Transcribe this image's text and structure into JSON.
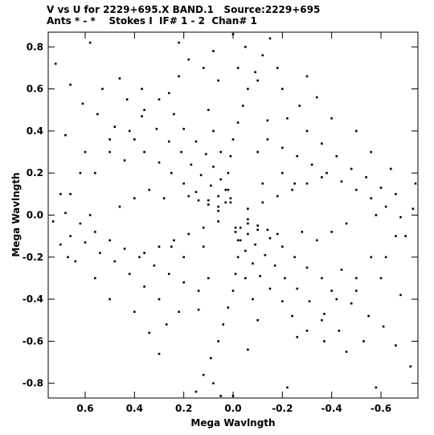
{
  "header": {
    "title": "V vs U for 2229+695.X BAND.1   Source:2229+695",
    "subtitle": "Ants * - *    Stokes I  IF# 1 - 2  Chan# 1"
  },
  "chart_data": {
    "type": "scatter",
    "xlabel": "Mega Wavlngth",
    "ylabel": "Mega Wavlngth",
    "xlim": [
      0.75,
      -0.75
    ],
    "ylim": [
      -0.87,
      0.87
    ],
    "x_ticks": [
      0.6,
      0.4,
      0.2,
      0.0,
      -0.2,
      -0.4,
      -0.6
    ],
    "x_tick_labels": [
      "0.6",
      "0.4",
      "0.2",
      "0.0",
      "-0.2",
      "-0.4",
      "-0.6"
    ],
    "y_ticks": [
      0.8,
      0.6,
      0.4,
      0.2,
      0.0,
      -0.2,
      -0.4,
      -0.6,
      -0.8
    ],
    "y_tick_labels": [
      "0.8",
      "0.6",
      "0.4",
      "0.2",
      "0.0",
      "-0.2",
      "-0.4",
      "-0.6",
      "-0.8"
    ],
    "grid": false,
    "marker_color": "#000000",
    "series": [
      {
        "points": [
          [
            0.72,
            0.72
          ],
          [
            0.58,
            0.82
          ],
          [
            0.66,
            0.62
          ],
          [
            0.61,
            0.53
          ],
          [
            0.53,
            0.6
          ],
          [
            0.46,
            0.65
          ],
          [
            0.55,
            0.48
          ],
          [
            0.43,
            0.55
          ],
          [
            0.37,
            0.6
          ],
          [
            0.48,
            0.42
          ],
          [
            0.37,
            0.47
          ],
          [
            0.3,
            0.55
          ],
          [
            0.4,
            0.36
          ],
          [
            0.31,
            0.41
          ],
          [
            0.24,
            0.48
          ],
          [
            0.36,
            0.3
          ],
          [
            0.26,
            0.35
          ],
          [
            0.2,
            0.41
          ],
          [
            0.3,
            0.25
          ],
          [
            0.21,
            0.3
          ],
          [
            0.15,
            0.35
          ],
          [
            0.25,
            0.2
          ],
          [
            0.17,
            0.24
          ],
          [
            0.11,
            0.29
          ],
          [
            0.2,
            0.15
          ],
          [
            0.13,
            0.19
          ],
          [
            0.08,
            0.23
          ],
          [
            0.15,
            0.11
          ],
          [
            0.09,
            0.14
          ],
          [
            0.05,
            0.17
          ],
          [
            0.1,
            0.07
          ],
          [
            0.06,
            0.09
          ],
          [
            0.03,
            0.12
          ],
          [
            0.06,
            0.04
          ],
          [
            0.03,
            0.06
          ],
          [
            0.01,
            0.08
          ],
          [
            -0.72,
            -0.72
          ],
          [
            -0.58,
            -0.82
          ],
          [
            -0.66,
            -0.62
          ],
          [
            -0.61,
            -0.53
          ],
          [
            -0.53,
            -0.6
          ],
          [
            -0.46,
            -0.65
          ],
          [
            -0.55,
            -0.48
          ],
          [
            -0.43,
            -0.55
          ],
          [
            -0.37,
            -0.6
          ],
          [
            -0.48,
            -0.42
          ],
          [
            -0.37,
            -0.47
          ],
          [
            -0.3,
            -0.55
          ],
          [
            -0.4,
            -0.36
          ],
          [
            -0.31,
            -0.41
          ],
          [
            -0.24,
            -0.48
          ],
          [
            -0.36,
            -0.3
          ],
          [
            -0.26,
            -0.35
          ],
          [
            -0.2,
            -0.41
          ],
          [
            -0.3,
            -0.25
          ],
          [
            -0.21,
            -0.3
          ],
          [
            -0.15,
            -0.35
          ],
          [
            -0.25,
            -0.2
          ],
          [
            -0.17,
            -0.24
          ],
          [
            -0.11,
            -0.29
          ],
          [
            -0.2,
            -0.15
          ],
          [
            -0.13,
            -0.19
          ],
          [
            -0.08,
            -0.23
          ],
          [
            -0.15,
            -0.11
          ],
          [
            -0.09,
            -0.14
          ],
          [
            -0.05,
            -0.17
          ],
          [
            -0.1,
            -0.07
          ],
          [
            -0.06,
            -0.09
          ],
          [
            -0.03,
            -0.12
          ],
          [
            -0.06,
            -0.04
          ],
          [
            -0.03,
            -0.06
          ],
          [
            -0.01,
            -0.08
          ],
          [
            -0.15,
            0.84
          ],
          [
            -0.12,
            0.76
          ],
          [
            -0.09,
            0.68
          ],
          [
            -0.06,
            0.6
          ],
          [
            -0.04,
            0.52
          ],
          [
            -0.02,
            0.44
          ],
          [
            0.0,
            0.36
          ],
          [
            0.01,
            0.28
          ],
          [
            0.02,
            0.2
          ],
          [
            0.02,
            0.12
          ],
          [
            0.01,
            0.06
          ],
          [
            0.15,
            -0.84
          ],
          [
            0.12,
            -0.76
          ],
          [
            0.09,
            -0.68
          ],
          [
            0.06,
            -0.6
          ],
          [
            0.04,
            -0.52
          ],
          [
            0.02,
            -0.44
          ],
          [
            0.0,
            -0.36
          ],
          [
            -0.01,
            -0.28
          ],
          [
            -0.02,
            -0.2
          ],
          [
            -0.02,
            -0.12
          ],
          [
            -0.01,
            -0.06
          ],
          [
            0.05,
            -0.86
          ],
          [
            0.08,
            -0.8
          ],
          [
            -0.05,
            0.8
          ],
          [
            -0.02,
            0.7
          ],
          [
            -0.1,
            0.64
          ],
          [
            -0.18,
            0.7
          ],
          [
            -0.2,
            0.6
          ],
          [
            0.08,
            0.78
          ],
          [
            0.12,
            0.7
          ],
          [
            0.18,
            0.74
          ],
          [
            0.22,
            0.66
          ],
          [
            -0.27,
            0.52
          ],
          [
            -0.22,
            0.46
          ],
          [
            -0.3,
            0.4
          ],
          [
            -0.36,
            0.34
          ],
          [
            -0.42,
            0.28
          ],
          [
            -0.48,
            0.22
          ],
          [
            -0.54,
            0.18
          ],
          [
            -0.6,
            0.13
          ],
          [
            -0.66,
            0.1
          ],
          [
            -0.74,
            0.15
          ],
          [
            -0.73,
            0.03
          ],
          [
            -0.68,
            -0.01
          ],
          [
            -0.62,
            0.04
          ],
          [
            -0.56,
            0.08
          ],
          [
            -0.5,
            0.12
          ],
          [
            -0.44,
            0.16
          ],
          [
            -0.38,
            0.2
          ],
          [
            -0.32,
            0.24
          ],
          [
            -0.26,
            0.28
          ],
          [
            -0.2,
            0.32
          ],
          [
            -0.14,
            0.36
          ],
          [
            0.27,
            -0.52
          ],
          [
            0.22,
            -0.46
          ],
          [
            0.3,
            -0.4
          ],
          [
            0.36,
            -0.34
          ],
          [
            0.42,
            -0.28
          ],
          [
            0.48,
            -0.22
          ],
          [
            0.54,
            -0.18
          ],
          [
            0.6,
            -0.13
          ],
          [
            0.66,
            -0.1
          ],
          [
            0.73,
            -0.03
          ],
          [
            0.68,
            0.01
          ],
          [
            0.62,
            -0.04
          ],
          [
            0.56,
            -0.08
          ],
          [
            0.5,
            -0.12
          ],
          [
            0.44,
            -0.16
          ],
          [
            0.38,
            -0.2
          ],
          [
            0.32,
            -0.24
          ],
          [
            0.26,
            -0.28
          ],
          [
            0.2,
            -0.32
          ],
          [
            0.14,
            -0.36
          ],
          [
            0.7,
            -0.14
          ],
          [
            0.67,
            -0.2
          ],
          [
            0.58,
            0.0
          ],
          [
            -0.58,
            0.0
          ],
          [
            -0.12,
            0.06
          ],
          [
            -0.18,
            0.09
          ],
          [
            -0.24,
            0.12
          ],
          [
            -0.3,
            0.15
          ],
          [
            -0.36,
            0.18
          ],
          [
            -0.06,
            0.03
          ],
          [
            0.12,
            -0.06
          ],
          [
            0.18,
            -0.09
          ],
          [
            0.24,
            -0.12
          ],
          [
            0.3,
            -0.15
          ],
          [
            0.36,
            -0.18
          ],
          [
            0.06,
            -0.03
          ],
          [
            -0.06,
            -0.02
          ],
          [
            -0.1,
            -0.05
          ],
          [
            -0.14,
            -0.07
          ],
          [
            -0.18,
            -0.09
          ],
          [
            0.06,
            0.02
          ],
          [
            0.1,
            0.05
          ],
          [
            0.14,
            0.07
          ],
          [
            0.18,
            0.09
          ],
          [
            -0.2,
            0.2
          ],
          [
            -0.25,
            0.15
          ],
          [
            0.2,
            -0.2
          ],
          [
            0.25,
            -0.15
          ],
          [
            -0.12,
            0.15
          ],
          [
            0.12,
            -0.15
          ],
          [
            0.34,
            0.12
          ],
          [
            0.4,
            0.08
          ],
          [
            0.46,
            0.04
          ],
          [
            -0.34,
            -0.12
          ],
          [
            -0.4,
            -0.08
          ],
          [
            -0.46,
            -0.04
          ],
          [
            0.28,
            0.08
          ],
          [
            -0.28,
            -0.08
          ],
          [
            0.05,
            0.3
          ],
          [
            -0.05,
            -0.3
          ],
          [
            0.08,
            0.4
          ],
          [
            -0.08,
            -0.4
          ],
          [
            0.1,
            0.5
          ],
          [
            -0.1,
            -0.5
          ],
          [
            -0.1,
            0.3
          ],
          [
            0.1,
            -0.3
          ],
          [
            -0.14,
            0.45
          ],
          [
            0.14,
            -0.45
          ],
          [
            0.42,
            0.4
          ],
          [
            -0.42,
            -0.4
          ],
          [
            0.5,
            0.3
          ],
          [
            -0.5,
            -0.3
          ],
          [
            0.6,
            0.3
          ],
          [
            -0.6,
            -0.3
          ],
          [
            0.56,
            0.2
          ],
          [
            -0.56,
            -0.2
          ],
          [
            0.66,
            0.1
          ],
          [
            -0.66,
            -0.1
          ],
          [
            0.36,
            0.5
          ],
          [
            -0.36,
            -0.5
          ],
          [
            0.44,
            0.26
          ],
          [
            -0.44,
            -0.26
          ],
          [
            0.5,
            0.36
          ],
          [
            -0.5,
            -0.36
          ],
          [
            0.06,
            0.64
          ],
          [
            -0.06,
            -0.64
          ],
          [
            0.26,
            0.58
          ],
          [
            -0.26,
            -0.58
          ],
          [
            -0.3,
            0.66
          ],
          [
            0.3,
            -0.66
          ],
          [
            -0.34,
            0.56
          ],
          [
            0.34,
            -0.56
          ],
          [
            -0.4,
            0.46
          ],
          [
            0.4,
            -0.46
          ],
          [
            -0.5,
            0.4
          ],
          [
            0.5,
            -0.4
          ],
          [
            -0.56,
            0.3
          ],
          [
            0.56,
            -0.3
          ],
          [
            -0.64,
            0.22
          ],
          [
            0.64,
            -0.22
          ],
          [
            -0.7,
            -0.1
          ],
          [
            0.7,
            0.1
          ],
          [
            -0.62,
            -0.2
          ],
          [
            0.62,
            0.2
          ],
          [
            -0.68,
            -0.38
          ],
          [
            0.68,
            0.38
          ],
          [
            0.0,
            0.86
          ],
          [
            0.0,
            -0.86
          ],
          [
            0.22,
            0.82
          ],
          [
            -0.22,
            -0.82
          ]
        ]
      }
    ]
  }
}
